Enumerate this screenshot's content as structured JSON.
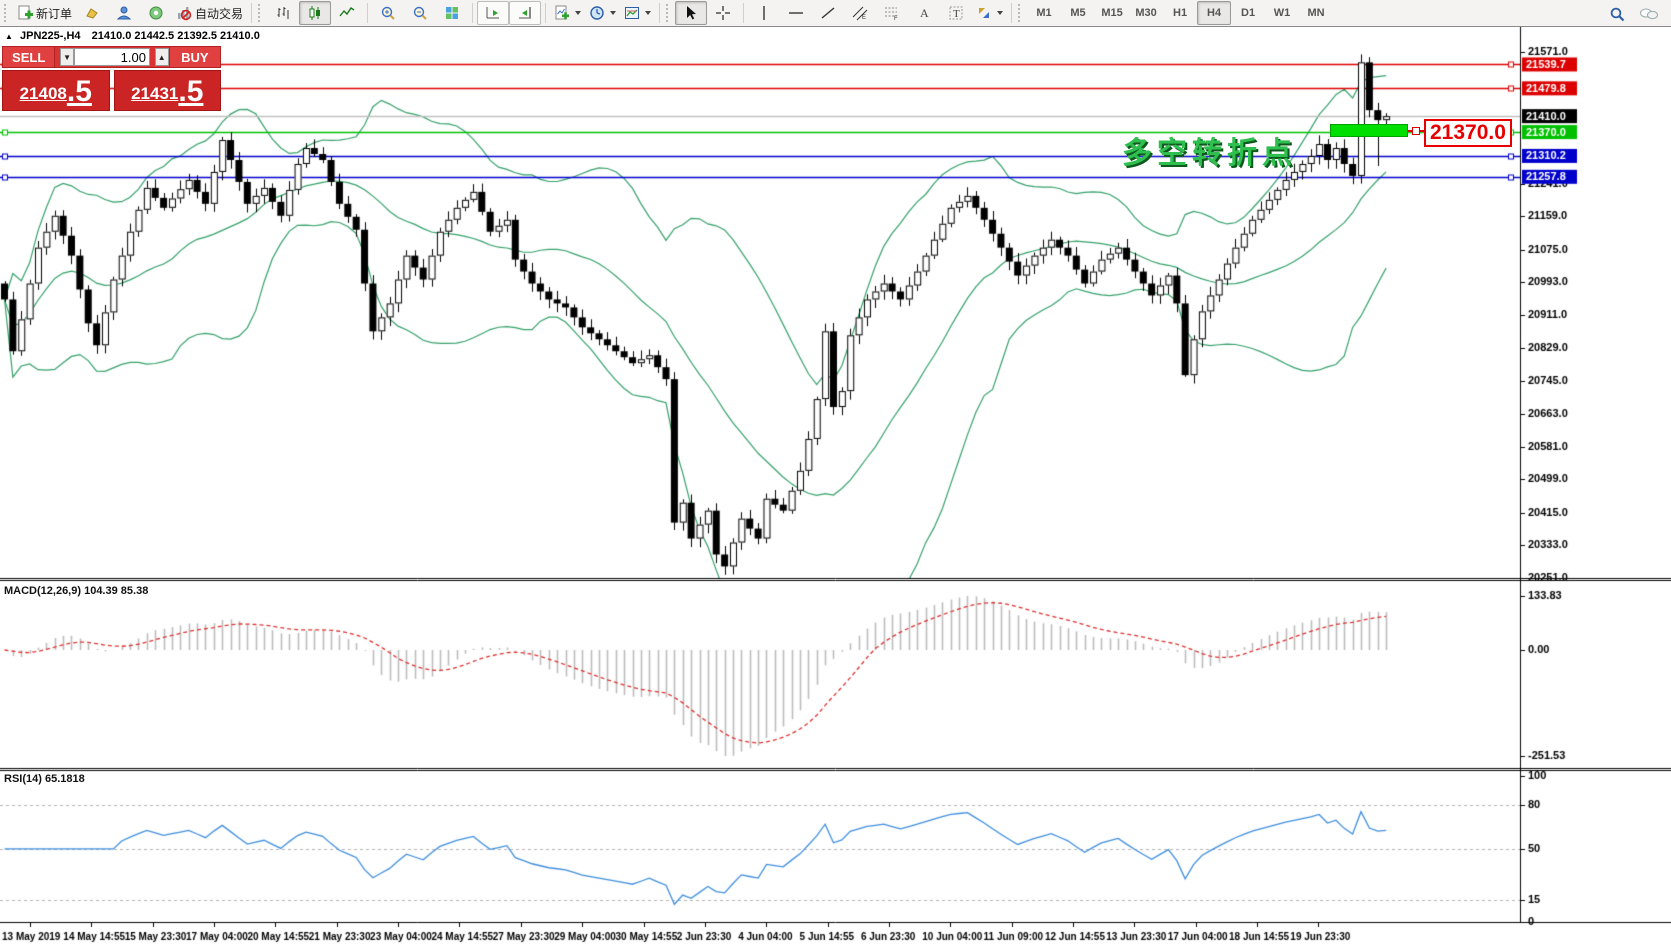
{
  "toolbar": {
    "new_order": "新订单",
    "autotrading": "自动交易",
    "timeframes": [
      "M1",
      "M5",
      "M15",
      "M30",
      "H1",
      "H4",
      "D1",
      "W1",
      "MN"
    ],
    "active_timeframe": "H4",
    "icons": [
      "new-order-icon",
      "new-chart-icon",
      "profiles-icon",
      "alerts-icon",
      "autotrading-icon",
      "bar-chart-icon",
      "candlestick-icon",
      "line-chart-icon",
      "zoom-in-icon",
      "zoom-out-icon",
      "tile-windows-icon",
      "auto-scroll-icon",
      "chart-shift-icon",
      "indicators-icon",
      "periods-icon",
      "templates-icon",
      "cursor-icon",
      "crosshair-icon",
      "vertical-line-icon",
      "horizontal-line-icon",
      "trendline-icon",
      "equidistant-channel-icon",
      "fibonacci-icon",
      "text-icon",
      "text-label-icon",
      "arrows-icon",
      "search-icon",
      "chat-icon"
    ]
  },
  "title": {
    "collapse_arrow": "▲",
    "symbol": "JPN225-,H4",
    "ohlc": "21410.0 21442.5 21392.5 21410.0"
  },
  "trade_panel": {
    "sell": "SELL",
    "buy": "BUY",
    "volume": "1.00",
    "bid_main": "21408",
    "bid_frac": ".5",
    "ask_main": "21431",
    "ask_frac": ".5"
  },
  "annotation": {
    "text": "多空转折点",
    "callout": "21370.0"
  },
  "macd_label": "MACD(12,26,9) 104.39 85.38",
  "rsi_label": "RSI(14) 65.1818",
  "axes": {
    "price_ticks": [
      {
        "v": 21571.0,
        "label": "21571.0"
      },
      {
        "v": 21241.0,
        "label": "21241.0"
      },
      {
        "v": 21159.0,
        "label": "21159.0"
      },
      {
        "v": 21075.0,
        "label": "21075.0"
      },
      {
        "v": 20993.0,
        "label": "20993.0"
      },
      {
        "v": 20911.0,
        "label": "20911.0"
      },
      {
        "v": 20829.0,
        "label": "20829.0"
      },
      {
        "v": 20745.0,
        "label": "20745.0"
      },
      {
        "v": 20663.0,
        "label": "20663.0"
      },
      {
        "v": 20581.0,
        "label": "20581.0"
      },
      {
        "v": 20499.0,
        "label": "20499.0"
      },
      {
        "v": 20415.0,
        "label": "20415.0"
      },
      {
        "v": 20333.0,
        "label": "20333.0"
      },
      {
        "v": 20251.0,
        "label": "20251.0"
      }
    ],
    "macd_ticks": [
      {
        "v": 133.83,
        "label": "133.83"
      },
      {
        "v": 0,
        "label": "0.00"
      },
      {
        "v": -251.53,
        "label": "-251.53"
      }
    ],
    "rsi_ticks": [
      {
        "v": 100,
        "label": "100"
      },
      {
        "v": 80,
        "label": "80"
      },
      {
        "v": 50,
        "label": "50"
      },
      {
        "v": 15,
        "label": "15"
      },
      {
        "v": 0,
        "label": "0"
      }
    ],
    "rsi_levels": [
      80,
      50,
      15
    ],
    "time_labels": [
      "13 May 2019",
      "14 May 14:55",
      "15 May 23:30",
      "17 May 04:00",
      "20 May 14:55",
      "21 May 23:30",
      "23 May 04:00",
      "24 May 14:55",
      "27 May 23:30",
      "29 May 04:00",
      "30 May 14:55",
      "2 Jun 23:30",
      "4 Jun 04:00",
      "5 Jun 14:55",
      "6 Jun 23:30",
      "10 Jun 04:00",
      "11 Jun 09:00",
      "12 Jun 14:55",
      "13 Jun 23:30",
      "17 Jun 04:00",
      "18 Jun 14:55",
      "19 Jun 23:30"
    ]
  },
  "chart_data": {
    "type": "candlestick",
    "symbol": "JPN225-",
    "timeframe": "H4",
    "open": 21410.0,
    "high": 21442.5,
    "low": 21392.5,
    "close": 21410.0,
    "bid": 21408.5,
    "ask": 21431.5,
    "price_range": {
      "top": 21571.0,
      "bottom": 20251.0
    },
    "candle_count": 166,
    "close_anchors": [
      [
        0,
        20950
      ],
      [
        1,
        20820
      ],
      [
        2,
        20900
      ],
      [
        4,
        21080
      ],
      [
        6,
        21160
      ],
      [
        8,
        21060
      ],
      [
        10,
        20890
      ],
      [
        11,
        20835
      ],
      [
        13,
        21000
      ],
      [
        15,
        21120
      ],
      [
        17,
        21230
      ],
      [
        19,
        21180
      ],
      [
        22,
        21250
      ],
      [
        24,
        21190
      ],
      [
        26,
        21350
      ],
      [
        27,
        21300
      ],
      [
        29,
        21190
      ],
      [
        31,
        21230
      ],
      [
        33,
        21160
      ],
      [
        35,
        21290
      ],
      [
        36,
        21330
      ],
      [
        38,
        21300
      ],
      [
        40,
        21190
      ],
      [
        42,
        21125
      ],
      [
        43,
        20990
      ],
      [
        44,
        20870
      ],
      [
        46,
        20940
      ],
      [
        48,
        21060
      ],
      [
        50,
        21000
      ],
      [
        52,
        21120
      ],
      [
        54,
        21180
      ],
      [
        56,
        21220
      ],
      [
        58,
        21120
      ],
      [
        60,
        21150
      ],
      [
        61,
        21050
      ],
      [
        63,
        20990
      ],
      [
        65,
        20950
      ],
      [
        67,
        20930
      ],
      [
        69,
        20880
      ],
      [
        71,
        20850
      ],
      [
        73,
        20820
      ],
      [
        75,
        20790
      ],
      [
        77,
        20810
      ],
      [
        79,
        20750
      ],
      [
        80,
        20390
      ],
      [
        81,
        20440
      ],
      [
        82,
        20350
      ],
      [
        84,
        20420
      ],
      [
        85,
        20310
      ],
      [
        86,
        20280
      ],
      [
        88,
        20400
      ],
      [
        90,
        20350
      ],
      [
        91,
        20450
      ],
      [
        93,
        20420
      ],
      [
        95,
        20520
      ],
      [
        96,
        20600
      ],
      [
        97,
        20700
      ],
      [
        98,
        20870
      ],
      [
        99,
        20680
      ],
      [
        100,
        20720
      ],
      [
        101,
        20860
      ],
      [
        103,
        20950
      ],
      [
        105,
        20990
      ],
      [
        107,
        20950
      ],
      [
        109,
        21020
      ],
      [
        111,
        21100
      ],
      [
        113,
        21180
      ],
      [
        115,
        21210
      ],
      [
        117,
        21150
      ],
      [
        119,
        21080
      ],
      [
        121,
        21010
      ],
      [
        123,
        21060
      ],
      [
        125,
        21100
      ],
      [
        127,
        21060
      ],
      [
        129,
        20990
      ],
      [
        131,
        21050
      ],
      [
        133,
        21080
      ],
      [
        135,
        21020
      ],
      [
        137,
        20960
      ],
      [
        139,
        21010
      ],
      [
        140,
        20940
      ],
      [
        141,
        20760
      ],
      [
        142,
        20850
      ],
      [
        143,
        20920
      ],
      [
        145,
        21000
      ],
      [
        147,
        21080
      ],
      [
        149,
        21150
      ],
      [
        151,
        21200
      ],
      [
        153,
        21250
      ],
      [
        155,
        21290
      ],
      [
        156,
        21310
      ],
      [
        157,
        21340
      ],
      [
        158,
        21300
      ],
      [
        159,
        21330
      ],
      [
        160,
        21290
      ],
      [
        161,
        21260
      ],
      [
        162,
        21545
      ],
      [
        163,
        21425
      ],
      [
        164,
        21400
      ],
      [
        165,
        21410
      ]
    ],
    "wick_overrides": {
      "141": {
        "lo": 20756
      },
      "162": {
        "hi": 21565
      },
      "163": {
        "hi": 21558
      },
      "164": {
        "lo": 21285
      }
    },
    "h_lines": [
      {
        "price": 21539.7,
        "label": "21539.7",
        "color": "#dd0000"
      },
      {
        "price": 21479.8,
        "label": "21479.8",
        "color": "#dd0000"
      },
      {
        "price": 21410.0,
        "label": "21410.0",
        "color": "#c0c0c0",
        "current": true
      },
      {
        "price": 21370.0,
        "label": "21370.0",
        "color": "#00c000"
      },
      {
        "price": 21310.2,
        "label": "21310.2",
        "color": "#0000cc"
      },
      {
        "price": 21257.8,
        "label": "21257.8",
        "color": "#0000cc"
      }
    ],
    "highlight_rect": {
      "price_top": 21390,
      "price_bottom": 21357
    },
    "indicators": {
      "bollinger": {
        "period": 20,
        "deviation": 2,
        "color": "#35a06a"
      },
      "macd": {
        "fast": 12,
        "slow": 26,
        "signal": 9,
        "value": 104.39,
        "signal_value": 85.38,
        "hist_color": "#bdbdbd",
        "signal_color": "#e03030",
        "range": [
          -251.53,
          133.83
        ]
      },
      "rsi": {
        "period": 14,
        "value": 65.1818,
        "color": "#3f8ede",
        "levels": [
          80,
          50,
          15
        ]
      }
    },
    "colors": {
      "bull_body": "#ffffff",
      "bear_body": "#000000",
      "outline": "#000000"
    }
  }
}
